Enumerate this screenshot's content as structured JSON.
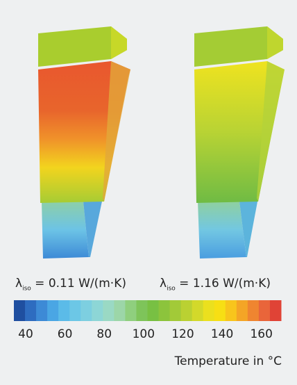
{
  "panels": [
    {
      "label": {
        "symbol": "λ",
        "subscript": "iso",
        "text": "= 0.11 W/(m·K)"
      }
    },
    {
      "label": {
        "symbol": "λ",
        "subscript": "iso",
        "text": "= 1.16 W/(m·K)"
      }
    }
  ],
  "colorbar": {
    "range": [
      34,
      170
    ],
    "ticks": [
      40,
      60,
      80,
      100,
      120,
      140,
      160
    ],
    "title": "Temperature in °C",
    "colors": [
      "#1f4fa0",
      "#2e6cc0",
      "#3d8ad6",
      "#4aa6e4",
      "#5bbbe8",
      "#6cc7e6",
      "#7dcfe0",
      "#8dd6d6",
      "#9ad9c4",
      "#9cd6a8",
      "#8fcf7e",
      "#7ec45a",
      "#78c043",
      "#8cc43c",
      "#a2ca38",
      "#bad132",
      "#d3d92a",
      "#ebe01e",
      "#f7df14",
      "#f8c51c",
      "#f4a526",
      "#ef8530",
      "#e9653a",
      "#e04336"
    ]
  }
}
